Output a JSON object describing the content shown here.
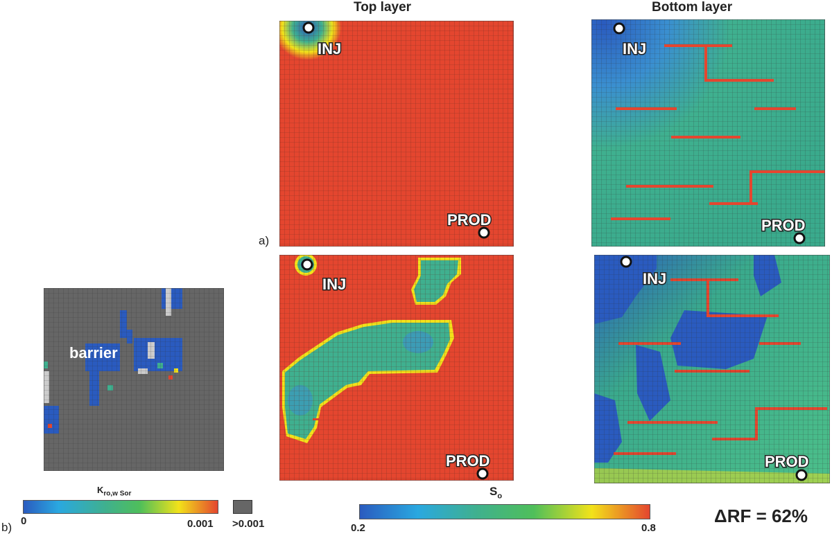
{
  "headers": {
    "top": "Top layer",
    "bottom": "Bottom layer"
  },
  "labels": {
    "a": "a)",
    "b": "b)"
  },
  "wells": {
    "inj": "INJ",
    "prod": "PROD"
  },
  "barrier_label": "barrier",
  "kro_bar": {
    "title": "K",
    "sub": "ro,w Sor",
    "min": "0",
    "max": "0.001",
    "gray_label": ">0.001"
  },
  "so_bar": {
    "title": "S",
    "sub": "o",
    "min": "0.2",
    "max": "0.8"
  },
  "delta_rf": "ΔRF = 62%",
  "colors": {
    "red": "#e4462f",
    "blue": "#2a5bbf",
    "teal": "#3fb08f",
    "yellow": "#f2e21a",
    "gray": "#666666",
    "grid": "#6a6a6a"
  }
}
